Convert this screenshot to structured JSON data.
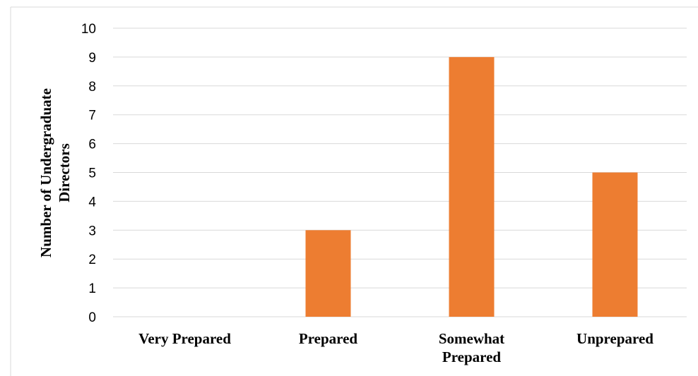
{
  "chart_data": {
    "type": "bar",
    "title": "",
    "xlabel": "",
    "ylabel_lines": [
      "Number of Undergraduate",
      "Directors"
    ],
    "categories": [
      [
        "Very Prepared"
      ],
      [
        "Prepared"
      ],
      [
        "Somewhat",
        "Prepared"
      ],
      [
        "Unprepared"
      ]
    ],
    "values": [
      0,
      3,
      9,
      5
    ],
    "ylim": [
      0,
      10
    ],
    "yticks": [
      0,
      1,
      2,
      3,
      4,
      5,
      6,
      7,
      8,
      9,
      10
    ],
    "grid": true,
    "legend": "none",
    "bar_color": "#ED7D31",
    "grid_color": "#D9D9D9",
    "frame_color": "#D9D9D9"
  }
}
